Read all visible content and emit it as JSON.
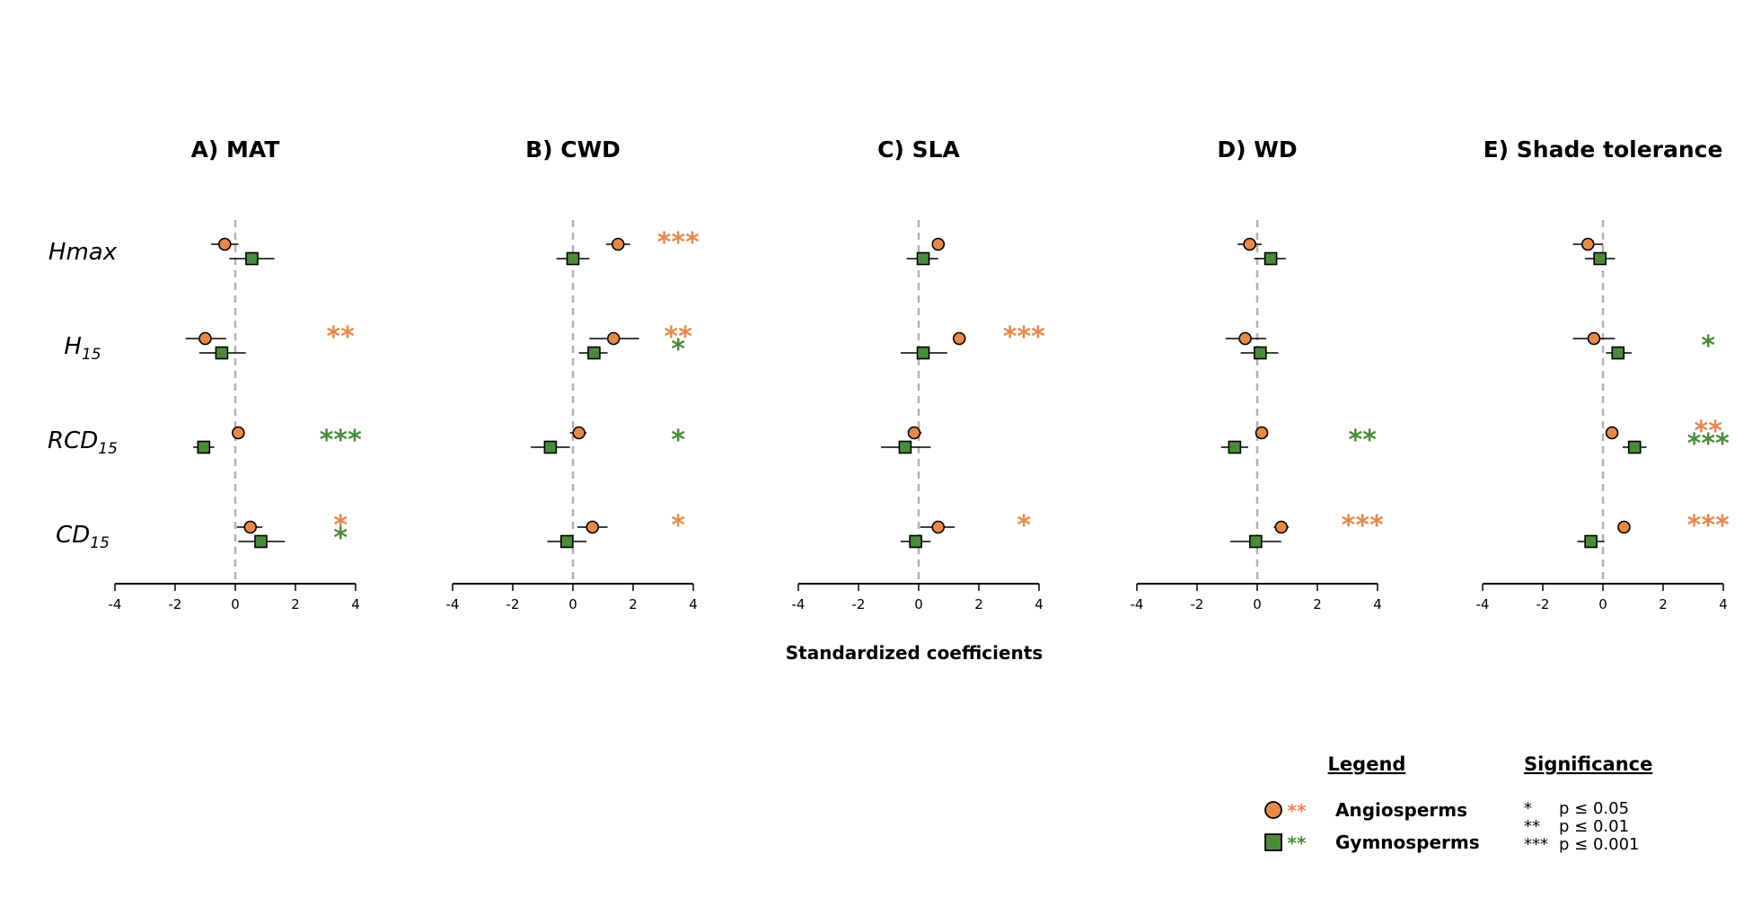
{
  "colors": {
    "angiosperms": "#E8894A",
    "gymnosperms": "#4A8C3A",
    "zero_line": "#b0b0b0",
    "axis": "#000000"
  },
  "chart_data": {
    "type": "forest",
    "xlabel": "Standardized coefficients",
    "xlim": [
      -4,
      4
    ],
    "xticks": [
      -4,
      -2,
      0,
      2,
      4
    ],
    "xtick_labels": [
      "-4",
      "-2",
      "0",
      "2",
      "4"
    ],
    "rows": [
      {
        "label": "Hmax",
        "sub": ""
      },
      {
        "label": "H",
        "sub": "15"
      },
      {
        "label": "RCD",
        "sub": "15"
      },
      {
        "label": "CD",
        "sub": "15"
      }
    ],
    "series_names": [
      "Angiosperms",
      "Gymnosperms"
    ],
    "panels": [
      {
        "title": "A) MAT",
        "angio": [
          {
            "est": -0.35,
            "lo": -0.8,
            "hi": 0.1,
            "sig": ""
          },
          {
            "est": -1.0,
            "lo": -1.65,
            "hi": -0.3,
            "sig": "**"
          },
          {
            "est": 0.1,
            "lo": -0.1,
            "hi": 0.3,
            "sig": ""
          },
          {
            "est": 0.5,
            "lo": 0.05,
            "hi": 0.9,
            "sig": "*"
          }
        ],
        "gymno": [
          {
            "est": 0.55,
            "lo": -0.2,
            "hi": 1.3,
            "sig": ""
          },
          {
            "est": -0.45,
            "lo": -1.2,
            "hi": 0.35,
            "sig": ""
          },
          {
            "est": -1.05,
            "lo": -1.4,
            "hi": -0.7,
            "sig": "***"
          },
          {
            "est": 0.85,
            "lo": 0.1,
            "hi": 1.65,
            "sig": "*"
          }
        ]
      },
      {
        "title": "B) CWD",
        "angio": [
          {
            "est": 1.5,
            "lo": 1.1,
            "hi": 1.9,
            "sig": "***"
          },
          {
            "est": 1.35,
            "lo": 0.55,
            "hi": 2.2,
            "sig": "**"
          },
          {
            "est": 0.2,
            "lo": -0.1,
            "hi": 0.45,
            "sig": ""
          },
          {
            "est": 0.65,
            "lo": 0.15,
            "hi": 1.15,
            "sig": "*"
          }
        ],
        "gymno": [
          {
            "est": 0.0,
            "lo": -0.55,
            "hi": 0.55,
            "sig": ""
          },
          {
            "est": 0.7,
            "lo": 0.2,
            "hi": 1.15,
            "sig": "*"
          },
          {
            "est": -0.75,
            "lo": -1.4,
            "hi": -0.1,
            "sig": "*"
          },
          {
            "est": -0.2,
            "lo": -0.85,
            "hi": 0.45,
            "sig": ""
          }
        ]
      },
      {
        "title": "C) SLA",
        "angio": [
          {
            "est": 0.65,
            "lo": 0.65,
            "hi": 0.65,
            "sig": ""
          },
          {
            "est": 1.35,
            "lo": 1.35,
            "hi": 1.35,
            "sig": "***"
          },
          {
            "est": -0.15,
            "lo": -0.3,
            "hi": 0.1,
            "sig": ""
          },
          {
            "est": 0.65,
            "lo": 0.05,
            "hi": 1.2,
            "sig": "*"
          }
        ],
        "gymno": [
          {
            "est": 0.15,
            "lo": -0.4,
            "hi": 0.65,
            "sig": ""
          },
          {
            "est": 0.15,
            "lo": -0.6,
            "hi": 0.95,
            "sig": ""
          },
          {
            "est": -0.45,
            "lo": -1.25,
            "hi": 0.4,
            "sig": ""
          },
          {
            "est": -0.1,
            "lo": -0.6,
            "hi": 0.4,
            "sig": ""
          }
        ]
      },
      {
        "title": "D) WD",
        "angio": [
          {
            "est": -0.25,
            "lo": -0.65,
            "hi": 0.15,
            "sig": ""
          },
          {
            "est": -0.4,
            "lo": -1.05,
            "hi": 0.3,
            "sig": ""
          },
          {
            "est": 0.15,
            "lo": 0.0,
            "hi": 0.3,
            "sig": ""
          },
          {
            "est": 0.8,
            "lo": 0.55,
            "hi": 1.05,
            "sig": "***"
          }
        ],
        "gymno": [
          {
            "est": 0.45,
            "lo": -0.1,
            "hi": 0.95,
            "sig": ""
          },
          {
            "est": 0.1,
            "lo": -0.55,
            "hi": 0.7,
            "sig": ""
          },
          {
            "est": -0.75,
            "lo": -1.2,
            "hi": -0.3,
            "sig": "**"
          },
          {
            "est": -0.05,
            "lo": -0.9,
            "hi": 0.8,
            "sig": ""
          }
        ]
      },
      {
        "title": "E) Shade tolerance",
        "angio": [
          {
            "est": -0.5,
            "lo": -1.0,
            "hi": 0.0,
            "sig": ""
          },
          {
            "est": -0.3,
            "lo": -1.0,
            "hi": 0.4,
            "sig": ""
          },
          {
            "est": 0.3,
            "lo": 0.3,
            "hi": 0.3,
            "sig": "**"
          },
          {
            "est": 0.7,
            "lo": 0.7,
            "hi": 0.7,
            "sig": "***"
          }
        ],
        "gymno": [
          {
            "est": -0.1,
            "lo": -0.6,
            "hi": 0.4,
            "sig": ""
          },
          {
            "est": 0.5,
            "lo": 0.1,
            "hi": 0.95,
            "sig": "*"
          },
          {
            "est": 1.05,
            "lo": 0.65,
            "hi": 1.45,
            "sig": "***"
          },
          {
            "est": -0.4,
            "lo": -0.85,
            "hi": 0.05,
            "sig": ""
          }
        ]
      }
    ]
  },
  "legend": {
    "heading": "Legend",
    "items": [
      {
        "marker": "circle",
        "stars": "**",
        "label": "Angiosperms"
      },
      {
        "marker": "square",
        "stars": "**",
        "label": "Gymnosperms"
      }
    ]
  },
  "significance": {
    "heading": "Significance",
    "rows": [
      {
        "stars": "*",
        "text": "p ≤ 0.05"
      },
      {
        "stars": "**",
        "text": "p ≤ 0.01"
      },
      {
        "stars": "***",
        "text": "p ≤ 0.001"
      }
    ]
  }
}
